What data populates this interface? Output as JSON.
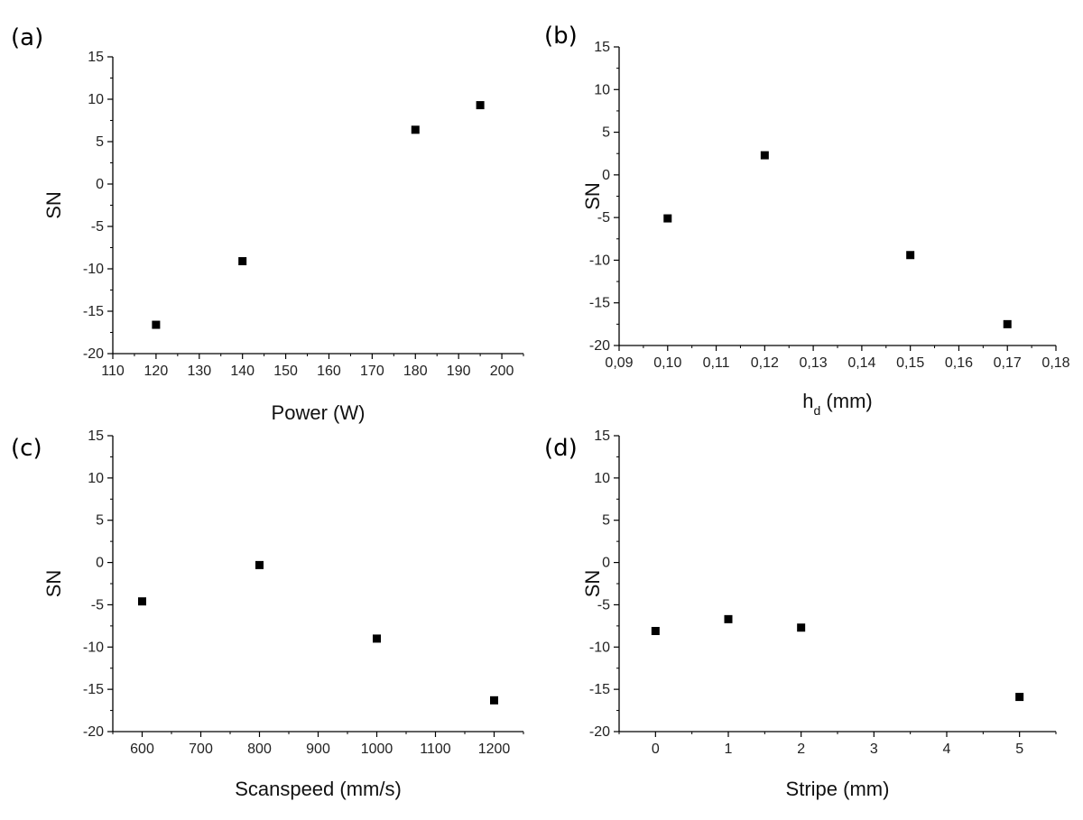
{
  "chart_data": [
    {
      "type": "scatter",
      "panel_label": "(a)",
      "xlabel": "Power (W)",
      "ylabel": "SN",
      "xlim": [
        110,
        205
      ],
      "ylim": [
        -20,
        15
      ],
      "xticks": [
        110,
        120,
        130,
        140,
        150,
        160,
        170,
        180,
        190,
        200
      ],
      "xtick_labels": [
        "110",
        "120",
        "130",
        "140",
        "150",
        "160",
        "170",
        "180",
        "190",
        "200"
      ],
      "yticks": [
        -20,
        -15,
        -10,
        -5,
        0,
        5,
        10,
        15
      ],
      "ytick_labels": [
        "-20",
        "-15",
        "-10",
        "-5",
        "0",
        "5",
        "10",
        "15"
      ],
      "grid": false,
      "x": [
        120,
        140,
        180,
        195
      ],
      "y": [
        -16.6,
        -9.1,
        6.4,
        9.3
      ]
    },
    {
      "type": "scatter",
      "panel_label": "(b)",
      "xlabel": "h",
      "xlabel_sub": "d",
      "xlabel_suffix": " (mm)",
      "ylabel": "SN",
      "xlim": [
        0.09,
        0.18
      ],
      "ylim": [
        -20,
        15
      ],
      "xticks": [
        0.09,
        0.1,
        0.11,
        0.12,
        0.13,
        0.14,
        0.15,
        0.16,
        0.17,
        0.18
      ],
      "xtick_labels": [
        "0,09",
        "0,10",
        "0,11",
        "0,12",
        "0,13",
        "0,14",
        "0,15",
        "0,16",
        "0,17",
        "0,18"
      ],
      "yticks": [
        -20,
        -15,
        -10,
        -5,
        0,
        5,
        10,
        15
      ],
      "ytick_labels": [
        "-20",
        "-15",
        "-10",
        "-5",
        "0",
        "5",
        "10",
        "15"
      ],
      "grid": false,
      "x": [
        0.1,
        0.12,
        0.15,
        0.17
      ],
      "y": [
        -5.1,
        2.3,
        -9.4,
        -17.5
      ]
    },
    {
      "type": "scatter",
      "panel_label": "(c)",
      "xlabel": "Scanspeed (mm/s)",
      "ylabel": "SN",
      "xlim": [
        550,
        1250
      ],
      "ylim": [
        -20,
        15
      ],
      "xticks": [
        600,
        700,
        800,
        900,
        1000,
        1100,
        1200
      ],
      "xtick_labels": [
        "600",
        "700",
        "800",
        "900",
        "1000",
        "1100",
        "1200"
      ],
      "yticks": [
        -20,
        -15,
        -10,
        -5,
        0,
        5,
        10,
        15
      ],
      "ytick_labels": [
        "-20",
        "-15",
        "-10",
        "-5",
        "0",
        "5",
        "10",
        "15"
      ],
      "grid": false,
      "x": [
        600,
        800,
        1000,
        1200
      ],
      "y": [
        -4.6,
        -0.3,
        -9.0,
        -16.3
      ]
    },
    {
      "type": "scatter",
      "panel_label": "(d)",
      "xlabel": "Stripe (mm)",
      "ylabel": "SN",
      "xlim": [
        -0.5,
        5.5
      ],
      "ylim": [
        -20,
        15
      ],
      "xticks": [
        0,
        1,
        2,
        3,
        4,
        5
      ],
      "xtick_labels": [
        "0",
        "1",
        "2",
        "3",
        "4",
        "5"
      ],
      "yticks": [
        -20,
        -15,
        -10,
        -5,
        0,
        5,
        10,
        15
      ],
      "ytick_labels": [
        "-20",
        "-15",
        "-10",
        "-5",
        "0",
        "5",
        "10",
        "15"
      ],
      "grid": false,
      "x": [
        0,
        1,
        2,
        5
      ],
      "y": [
        -8.1,
        -6.7,
        -7.7,
        -15.9
      ]
    }
  ]
}
